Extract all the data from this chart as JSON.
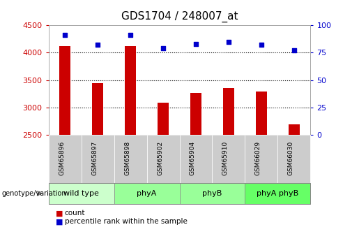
{
  "title": "GDS1704 / 248007_at",
  "samples": [
    "GSM65896",
    "GSM65897",
    "GSM65898",
    "GSM65902",
    "GSM65904",
    "GSM65910",
    "GSM66029",
    "GSM66030"
  ],
  "counts": [
    4120,
    3450,
    4120,
    3090,
    3270,
    3360,
    3290,
    2700
  ],
  "percentile_ranks": [
    91,
    82,
    91,
    79,
    83,
    85,
    82,
    77
  ],
  "groups": [
    {
      "label": "wild type",
      "start": 0,
      "end": 2,
      "color": "#ccffcc"
    },
    {
      "label": "phyA",
      "start": 2,
      "end": 4,
      "color": "#99ff99"
    },
    {
      "label": "phyB",
      "start": 4,
      "end": 6,
      "color": "#99ff99"
    },
    {
      "label": "phyA phyB",
      "start": 6,
      "end": 8,
      "color": "#66ff66"
    }
  ],
  "ymin": 2500,
  "ymax": 4500,
  "yticks": [
    2500,
    3000,
    3500,
    4000,
    4500
  ],
  "y2ticks": [
    0,
    25,
    50,
    75,
    100
  ],
  "bar_color": "#cc0000",
  "dot_color": "#0000cc",
  "title_fontsize": 11,
  "axis_label_color_left": "#cc0000",
  "axis_label_color_right": "#0000cc",
  "background_color": "#ffffff",
  "plot_bg_color": "#ffffff",
  "label_area_bg": "#cccccc",
  "grid_color": "#000000",
  "legend_count_color": "#cc0000",
  "legend_pct_color": "#0000cc",
  "grid_dotted_at": [
    3000,
    3500,
    4000
  ]
}
